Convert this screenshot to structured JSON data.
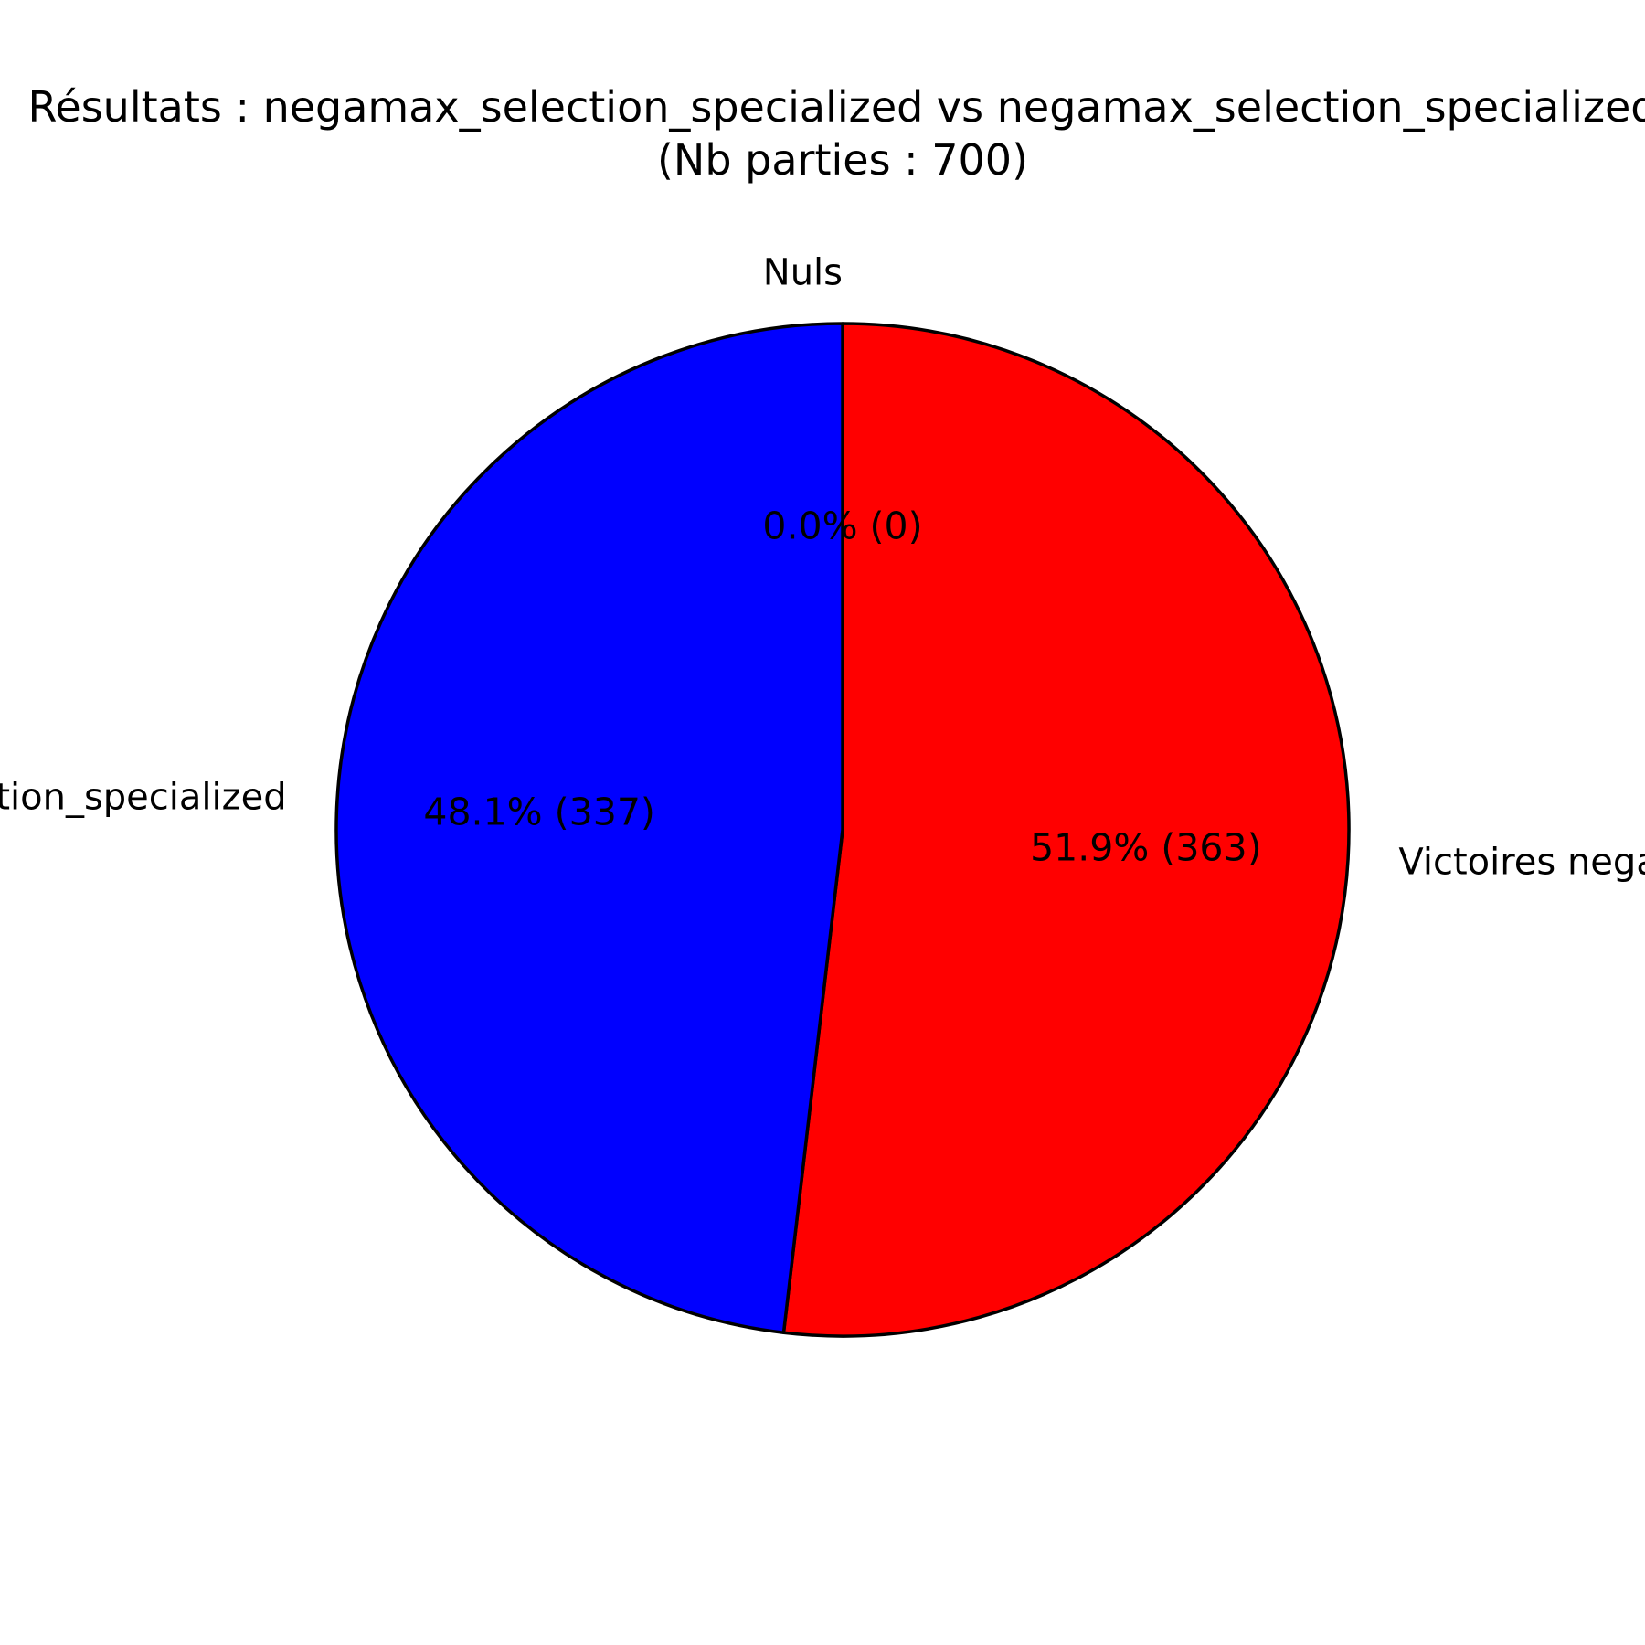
{
  "chart_data": {
    "type": "pie",
    "title": "Résultats : negamax_selection_specialized vs negamax_selection_specialized",
    "subtitle": "(Nb parties : 700)",
    "slices": [
      {
        "label": "Nuls",
        "value": 0,
        "percent_label": "0.0% (0)",
        "color": "#ff0000"
      },
      {
        "label": "Victoires negamax_selection_specialized",
        "value": 363,
        "percent_label": "51.9% (363)",
        "color": "#ff0000"
      },
      {
        "label": "Victoires negamax_selection_specialized",
        "value": 337,
        "percent_label": "48.1% (337)",
        "color": "#0000ff"
      }
    ],
    "start_angle_deg": 90,
    "direction": "clockwise",
    "edge_color": "#000000"
  }
}
